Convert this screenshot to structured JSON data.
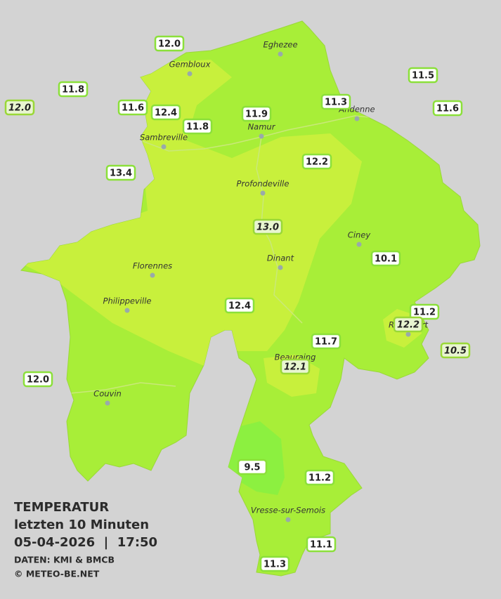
{
  "legend": {
    "title": "TEMPERATUR",
    "subtitle": "letzten 10 Minuten",
    "timestamp": "05-04-2026  |  17:50",
    "source": "DATEN: KMI & BMCB",
    "copyright": "© METEO-BE.NET"
  },
  "cities": [
    {
      "name": "Eghezee"
    },
    {
      "name": "Gembloux"
    },
    {
      "name": "Andenne"
    },
    {
      "name": "Namur"
    },
    {
      "name": "Sambreville"
    },
    {
      "name": "Profondeville"
    },
    {
      "name": "Ciney"
    },
    {
      "name": "Dinant"
    },
    {
      "name": "Florennes"
    },
    {
      "name": "Philippeville"
    },
    {
      "name": "Rochefort"
    },
    {
      "name": "Beauraing"
    },
    {
      "name": "Couvin"
    },
    {
      "name": "Vresse-sur-Semois"
    }
  ],
  "stations": [
    {
      "value": "12.0",
      "italic": false
    },
    {
      "value": "11.8",
      "italic": false
    },
    {
      "value": "12.0",
      "italic": true
    },
    {
      "value": "11.6",
      "italic": false
    },
    {
      "value": "12.4",
      "italic": false
    },
    {
      "value": "11.8",
      "italic": false
    },
    {
      "value": "11.9",
      "italic": false
    },
    {
      "value": "11.3",
      "italic": false
    },
    {
      "value": "11.5",
      "italic": false
    },
    {
      "value": "11.6",
      "italic": false
    },
    {
      "value": "13.4",
      "italic": false
    },
    {
      "value": "12.2",
      "italic": false
    },
    {
      "value": "13.0",
      "italic": true
    },
    {
      "value": "10.1",
      "italic": false
    },
    {
      "value": "12.4",
      "italic": false
    },
    {
      "value": "11.2",
      "italic": false
    },
    {
      "value": "12.2",
      "italic": true
    },
    {
      "value": "11.7",
      "italic": false
    },
    {
      "value": "10.5",
      "italic": true
    },
    {
      "value": "12.1",
      "italic": true
    },
    {
      "value": "12.0",
      "italic": false
    },
    {
      "value": "9.5",
      "italic": false
    },
    {
      "value": "11.2",
      "italic": false
    },
    {
      "value": "11.1",
      "italic": false
    },
    {
      "value": "11.3",
      "italic": false
    }
  ]
}
